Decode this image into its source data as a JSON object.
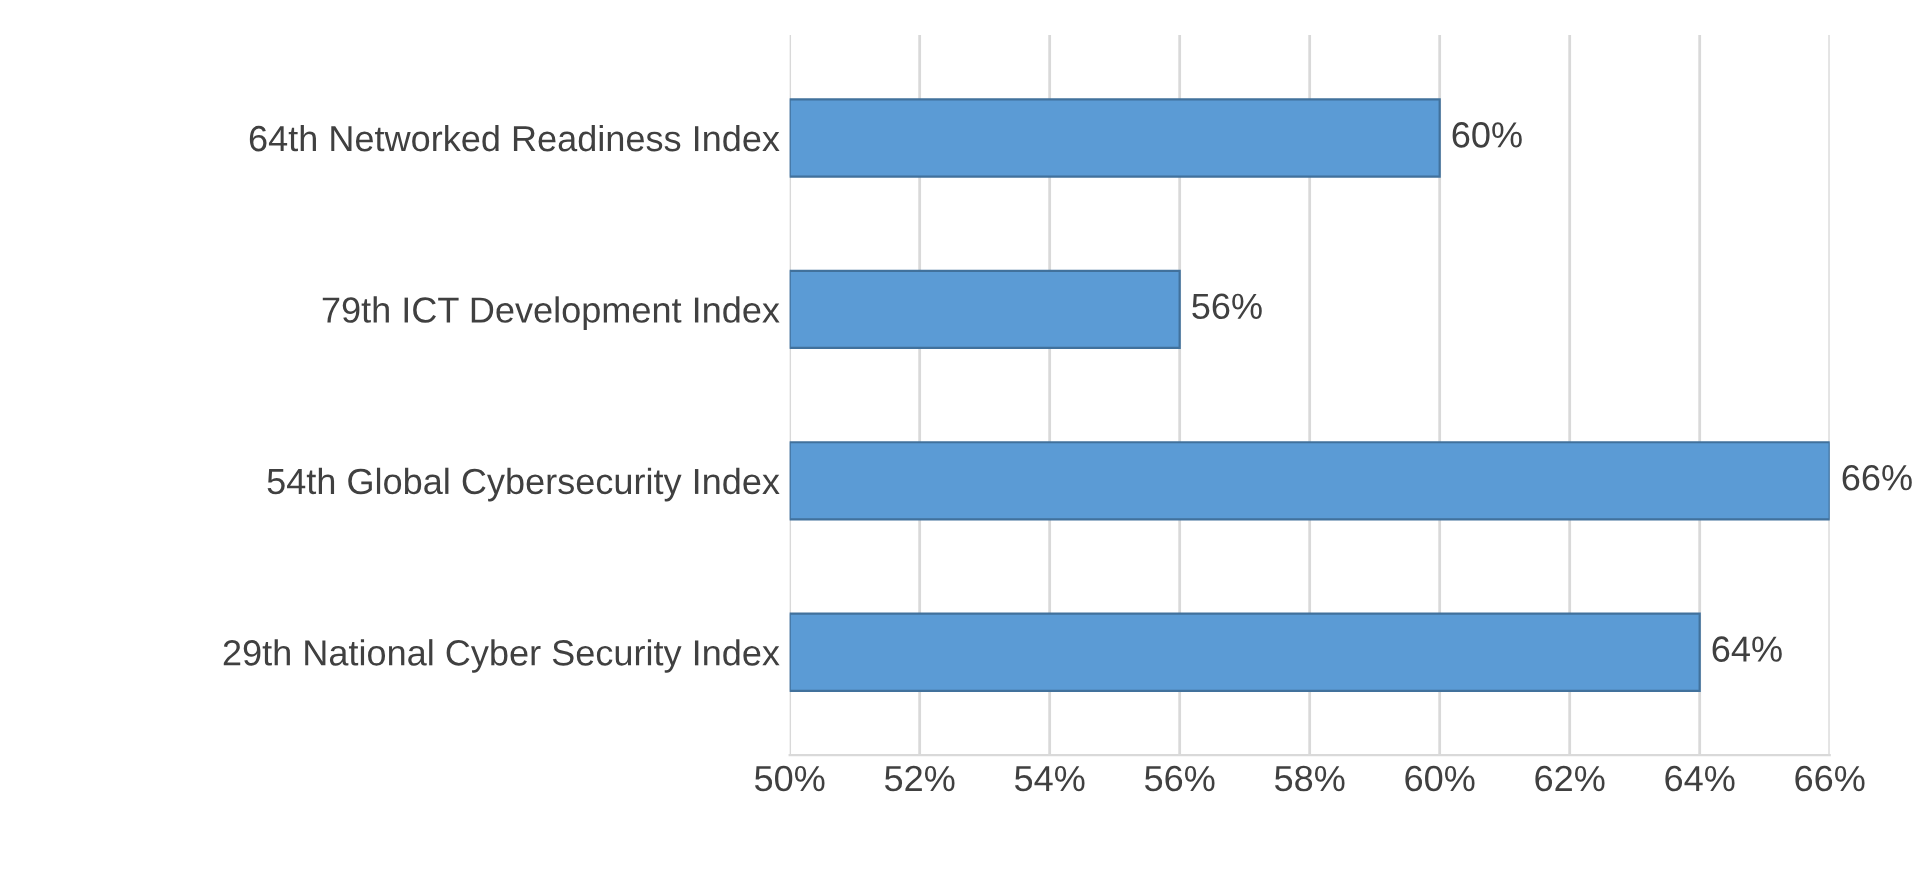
{
  "chart_data": {
    "type": "bar",
    "orientation": "horizontal",
    "categories": [
      "64th Networked Readiness Index",
      "79th ICT Development Index",
      "54th Global Cybersecurity Index",
      "29th National Cyber Security Index"
    ],
    "values": [
      60,
      56,
      66,
      64
    ],
    "value_labels": [
      "60%",
      "56%",
      "66%",
      "64%"
    ],
    "color": "#5b9bd5",
    "xlim": [
      50,
      66
    ],
    "xticks": [
      {
        "value": 50,
        "label": "50%"
      },
      {
        "value": 52,
        "label": "52%"
      },
      {
        "value": 54,
        "label": "54%"
      },
      {
        "value": 56,
        "label": "56%"
      },
      {
        "value": 58,
        "label": "58%"
      },
      {
        "value": 60,
        "label": "60%"
      },
      {
        "value": 62,
        "label": "62%"
      },
      {
        "value": 64,
        "label": "64%"
      },
      {
        "value": 66,
        "label": "66%"
      }
    ],
    "grid": "x",
    "legend": false
  }
}
